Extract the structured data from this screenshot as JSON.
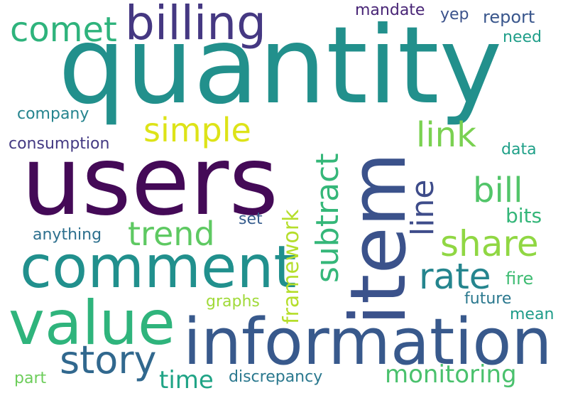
{
  "words": {
    "quantity": "quantity",
    "users": "users",
    "item": "item",
    "information": "information",
    "value": "value",
    "comment": "comment",
    "billing": "billing",
    "comet": "comet",
    "simple": "simple",
    "trend": "trend",
    "share": "share",
    "rate": "rate",
    "story": "story",
    "subtract": "subtract",
    "link": "link",
    "bill": "bill",
    "line": "line",
    "framework": "framework",
    "monitoring": "monitoring",
    "time": "time",
    "mandate": "mandate",
    "yep": "yep",
    "report": "report",
    "need": "need",
    "company": "company",
    "consumption": "consumption",
    "data": "data",
    "bits": "bits",
    "set": "set",
    "anything": "anything",
    "fire": "fire",
    "future": "future",
    "mean": "mean",
    "graphs": "graphs",
    "discrepancy": "discrepancy",
    "part": "part"
  },
  "palette": {
    "quantity": "#22908c",
    "users": "#440a57",
    "item": "#3b528b",
    "information": "#38598c",
    "value": "#2fb47c",
    "comment": "#21908d",
    "billing": "#453882",
    "comet": "#2eb37c",
    "simple": "#dde318",
    "trend": "#5ec962",
    "share": "#90d743",
    "rate": "#25858e",
    "story": "#31688e",
    "subtract": "#35b779",
    "link": "#7ad151",
    "bill": "#52c569",
    "line": "#3e4c8a",
    "framework": "#b5de2b",
    "monitoring": "#4ac16d",
    "time": "#20a486"
  }
}
